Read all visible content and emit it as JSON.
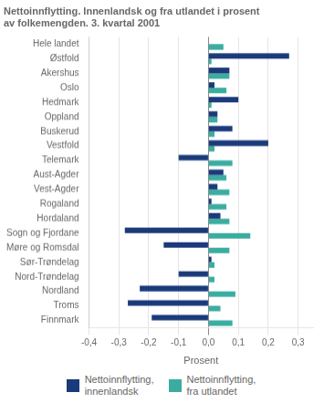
{
  "chart_data": {
    "type": "bar",
    "orientation": "horizontal",
    "title": "Nettoinnflytting. Innenlandsk og fra utlandet i prosent\nav folkemengden. 3. kvartal 2001",
    "categories": [
      "Hele landet",
      "Østfold",
      "Akershus",
      "Oslo",
      "Hedmark",
      "Oppland",
      "Buskerud",
      "Vestfold",
      "Telemark",
      "Aust-Agder",
      "Vest-Agder",
      "Rogaland",
      "Hordaland",
      "Sogn og Fjordane",
      "Møre og Romsdal",
      "Sør-Trøndelag",
      "Nord-Trøndelag",
      "Nordland",
      "Troms",
      "Finnmark"
    ],
    "series": [
      {
        "name": "Nettoinnflytting,\ninnenlandsk",
        "color": "#1a3a7a",
        "values": [
          0.0,
          0.27,
          0.07,
          0.02,
          0.1,
          0.03,
          0.08,
          0.2,
          -0.1,
          0.05,
          0.03,
          0.01,
          0.04,
          -0.28,
          -0.15,
          0.01,
          -0.1,
          -0.23,
          -0.27,
          -0.19
        ]
      },
      {
        "name": "Nettoinnflytting,\nfra utlandet",
        "color": "#3aada0",
        "values": [
          0.05,
          0.01,
          0.07,
          0.06,
          0.01,
          0.03,
          0.02,
          0.02,
          0.08,
          0.06,
          0.07,
          0.06,
          0.07,
          0.14,
          0.07,
          0.02,
          0.02,
          0.09,
          0.04,
          0.08
        ]
      }
    ],
    "xlabel": "Prosent",
    "xlim": [
      -0.4,
      0.35
    ],
    "xticks": [
      {
        "value": -0.4,
        "label": "-0,4"
      },
      {
        "value": -0.3,
        "label": "-0,3"
      },
      {
        "value": -0.2,
        "label": "-0,2"
      },
      {
        "value": -0.1,
        "label": "-0,1"
      },
      {
        "value": 0.0,
        "label": "0,0"
      },
      {
        "value": 0.1,
        "label": "0,1"
      },
      {
        "value": 0.2,
        "label": "0,2"
      },
      {
        "value": 0.3,
        "label": "0,3"
      }
    ],
    "grid": true,
    "legend": "bottom"
  }
}
